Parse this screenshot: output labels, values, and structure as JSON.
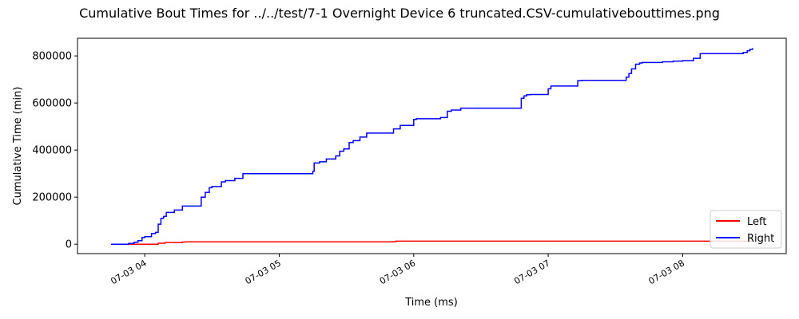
{
  "chart_data": {
    "type": "line",
    "title": "Cumulative Bout Times for ../../test/7-1 Overnight Device 6 truncated.CSV-cumulativebouttimes.png",
    "xlabel": "Time (ms)",
    "ylabel": "Cumulative Time (min)",
    "xlim": [
      3.5,
      8.77
    ],
    "ylim": [
      -40000,
      875000
    ],
    "yticks": [
      0,
      200000,
      400000,
      600000,
      800000
    ],
    "ytick_labels": [
      "0",
      "200000",
      "400000",
      "600000",
      "800000"
    ],
    "xticks": [
      4,
      5,
      6,
      7,
      8
    ],
    "xtick_labels": [
      "07-03 04",
      "07-03 05",
      "07-03 06",
      "07-03 07",
      "07-03 08"
    ],
    "legend_position": "lower-right",
    "grid": false,
    "step": true,
    "series": [
      {
        "name": "Left",
        "color": "#ff0000",
        "x": [
          3.75,
          4.1,
          4.15,
          4.28,
          4.3,
          5.85,
          5.87,
          8.53
        ],
        "y": [
          0,
          4000,
          7000,
          9000,
          10000,
          11000,
          13000,
          13000
        ]
      },
      {
        "name": "Right",
        "color": "#0000ff",
        "x": [
          3.75,
          3.88,
          3.92,
          3.95,
          3.98,
          4.0,
          4.05,
          4.08,
          4.1,
          4.12,
          4.14,
          4.16,
          4.22,
          4.28,
          4.42,
          4.45,
          4.48,
          4.5,
          4.57,
          4.6,
          4.67,
          4.73,
          5.25,
          5.26,
          5.3,
          5.35,
          5.42,
          5.45,
          5.48,
          5.52,
          5.55,
          5.6,
          5.65,
          5.85,
          5.9,
          6.0,
          6.02,
          6.2,
          6.25,
          6.28,
          6.35,
          6.8,
          6.82,
          6.84,
          6.87,
          7.0,
          7.02,
          7.22,
          7.25,
          7.58,
          7.6,
          7.62,
          7.65,
          7.68,
          7.7,
          7.85,
          7.93,
          8.0,
          8.08,
          8.13,
          8.45,
          8.48,
          8.5,
          8.52
        ],
        "y": [
          0,
          3000,
          8000,
          15000,
          28000,
          32000,
          45000,
          50000,
          85000,
          110000,
          118000,
          135000,
          145000,
          162000,
          200000,
          220000,
          240000,
          245000,
          265000,
          270000,
          280000,
          300000,
          310000,
          345000,
          350000,
          362000,
          375000,
          395000,
          405000,
          432000,
          440000,
          455000,
          472000,
          490000,
          505000,
          530000,
          533000,
          538000,
          565000,
          570000,
          578000,
          620000,
          630000,
          635000,
          636000,
          660000,
          672000,
          695000,
          696000,
          710000,
          725000,
          745000,
          765000,
          770000,
          772000,
          775000,
          778000,
          780000,
          790000,
          810000,
          815000,
          822000,
          828000,
          833000
        ]
      }
    ]
  }
}
